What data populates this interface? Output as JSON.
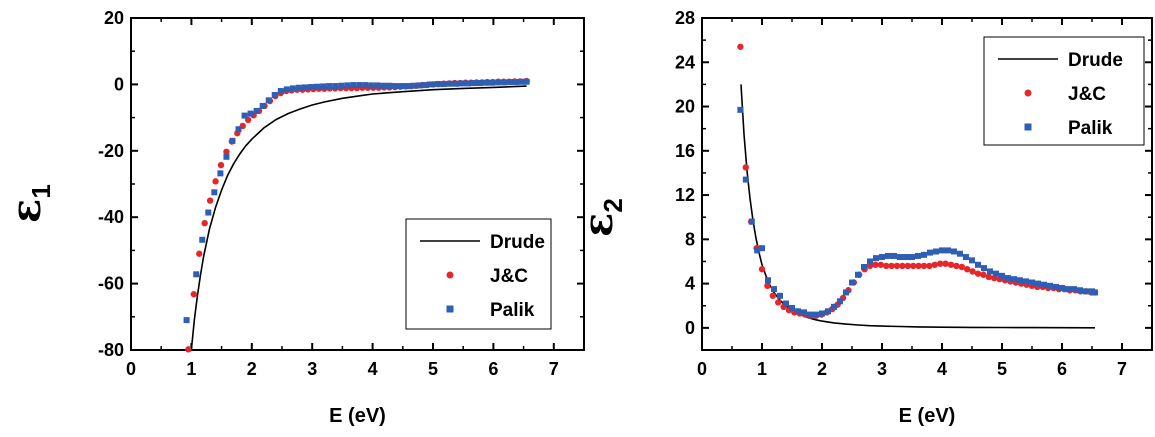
{
  "chart_data": [
    {
      "type": "scatter",
      "ylabel_symbol": "ε",
      "ylabel_subscript": "1",
      "xlabel": "E (eV)",
      "xlim": [
        0,
        7.5
      ],
      "ylim": [
        -80,
        20
      ],
      "xticks": [
        0,
        1,
        2,
        3,
        4,
        5,
        6,
        7
      ],
      "yticks": [
        -80,
        -60,
        -40,
        -20,
        0,
        20
      ],
      "legend_position": "bottom-right",
      "series": [
        {
          "name": "Drude",
          "kind": "line",
          "color": "#000000",
          "x": [
            1.0,
            1.05,
            1.1,
            1.15,
            1.2,
            1.3,
            1.4,
            1.5,
            1.6,
            1.7,
            1.8,
            1.9,
            2.0,
            2.2,
            2.4,
            2.6,
            2.8,
            3.0,
            3.2,
            3.5,
            3.8,
            4.0,
            4.5,
            5.0,
            5.5,
            6.0,
            6.55
          ],
          "y": [
            -79.8,
            -70.8,
            -63.7,
            -57.4,
            -52.0,
            -43.5,
            -37.0,
            -31.8,
            -27.4,
            -23.9,
            -21.0,
            -18.5,
            -16.5,
            -13.1,
            -10.6,
            -8.8,
            -7.4,
            -6.2,
            -5.3,
            -4.2,
            -3.4,
            -2.9,
            -2.2,
            -1.6,
            -1.2,
            -0.9,
            -0.5
          ]
        },
        {
          "name": "J&C",
          "kind": "circle",
          "color": "#e8262a",
          "x": [
            0.95,
            1.04,
            1.13,
            1.22,
            1.31,
            1.4,
            1.49,
            1.58,
            1.67,
            1.76,
            1.85,
            1.94,
            2.03,
            2.12,
            2.21,
            2.3,
            2.39,
            2.48,
            2.57,
            2.66,
            2.75,
            2.84,
            2.93,
            3.02,
            3.11,
            3.2,
            3.29,
            3.38,
            3.47,
            3.56,
            3.65,
            3.74,
            3.83,
            3.92,
            4.01,
            4.1,
            4.19,
            4.28,
            4.37,
            4.46,
            4.55,
            4.64,
            4.73,
            4.82,
            4.91,
            5.0,
            5.09,
            5.18,
            5.27,
            5.36,
            5.45,
            5.54,
            5.63,
            5.72,
            5.81,
            5.9,
            5.99,
            6.08,
            6.17,
            6.26,
            6.35,
            6.44,
            6.55
          ],
          "y": [
            -79.8,
            -63.2,
            -51.0,
            -41.8,
            -35.0,
            -29.2,
            -24.3,
            -20.3,
            -17.2,
            -14.7,
            -12.5,
            -10.7,
            -9.3,
            -8.0,
            -6.5,
            -5.0,
            -3.5,
            -2.6,
            -2.0,
            -1.8,
            -1.6,
            -1.6,
            -1.5,
            -1.4,
            -1.3,
            -1.3,
            -1.2,
            -1.2,
            -1.1,
            -1.1,
            -1.1,
            -1.1,
            -1.0,
            -1.0,
            -1.0,
            -1.0,
            -0.9,
            -0.9,
            -0.8,
            -0.7,
            -0.6,
            -0.5,
            -0.4,
            -0.2,
            -0.1,
            0.0,
            0.1,
            0.2,
            0.3,
            0.4,
            0.4,
            0.5,
            0.5,
            0.6,
            0.6,
            0.7,
            0.7,
            0.8,
            0.8,
            0.8,
            0.9,
            0.9,
            1.0
          ]
        },
        {
          "name": "Palik",
          "kind": "square",
          "color": "#2e5fb5",
          "x": [
            0.92,
            1.08,
            1.18,
            1.28,
            1.38,
            1.48,
            1.58,
            1.68,
            1.78,
            1.88,
            1.98,
            2.08,
            2.18,
            2.28,
            2.38,
            2.48,
            2.58,
            2.68,
            2.78,
            2.88,
            2.98,
            3.08,
            3.18,
            3.28,
            3.38,
            3.48,
            3.58,
            3.68,
            3.78,
            3.88,
            3.98,
            4.08,
            4.18,
            4.28,
            4.38,
            4.48,
            4.58,
            4.68,
            4.78,
            4.88,
            4.98,
            5.08,
            5.18,
            5.28,
            5.38,
            5.48,
            5.58,
            5.68,
            5.78,
            5.88,
            5.98,
            6.08,
            6.18,
            6.28,
            6.38,
            6.48,
            6.55
          ],
          "y": [
            -71.0,
            -57.2,
            -46.8,
            -38.6,
            -32.5,
            -26.8,
            -21.8,
            -17.0,
            -13.5,
            -9.4,
            -8.8,
            -8.0,
            -6.5,
            -4.8,
            -3.2,
            -2.0,
            -1.5,
            -1.2,
            -1.0,
            -0.9,
            -0.8,
            -0.7,
            -0.6,
            -0.5,
            -0.5,
            -0.4,
            -0.3,
            -0.2,
            -0.2,
            -0.2,
            -0.3,
            -0.3,
            -0.4,
            -0.4,
            -0.5,
            -0.5,
            -0.5,
            -0.4,
            -0.3,
            -0.2,
            0.0,
            0.1,
            0.1,
            0.2,
            0.2,
            0.3,
            0.3,
            0.4,
            0.4,
            0.5,
            0.5,
            0.6,
            0.6,
            0.7,
            0.7,
            0.8,
            0.8
          ]
        }
      ]
    },
    {
      "type": "scatter",
      "ylabel_symbol": "ε",
      "ylabel_subscript": "2",
      "xlabel": "E (eV)",
      "xlim": [
        0,
        7.5
      ],
      "ylim": [
        -2,
        28
      ],
      "xticks": [
        0,
        1,
        2,
        3,
        4,
        5,
        6,
        7
      ],
      "yticks": [
        0,
        4,
        8,
        12,
        16,
        20,
        24,
        28
      ],
      "legend_position": "top-right",
      "series": [
        {
          "name": "Drude",
          "kind": "line",
          "color": "#000000",
          "x": [
            0.65,
            0.7,
            0.75,
            0.8,
            0.85,
            0.9,
            0.95,
            1.0,
            1.1,
            1.2,
            1.3,
            1.4,
            1.5,
            1.6,
            1.7,
            1.8,
            1.9,
            2.0,
            2.2,
            2.4,
            2.6,
            2.8,
            3.0,
            3.3,
            3.6,
            4.0,
            4.5,
            5.0,
            5.5,
            6.0,
            6.55
          ],
          "y": [
            22.0,
            17.5,
            14.2,
            11.7,
            9.7,
            8.1,
            6.8,
            5.7,
            4.2,
            3.2,
            2.5,
            2.0,
            1.6,
            1.3,
            1.06,
            0.87,
            0.73,
            0.61,
            0.45,
            0.34,
            0.26,
            0.2,
            0.16,
            0.12,
            0.09,
            0.06,
            0.04,
            0.03,
            0.02,
            0.015,
            0.01
          ]
        },
        {
          "name": "J&C",
          "kind": "circle",
          "color": "#e8262a",
          "x": [
            0.64,
            0.73,
            0.82,
            0.91,
            1.0,
            1.09,
            1.18,
            1.27,
            1.36,
            1.45,
            1.54,
            1.63,
            1.72,
            1.81,
            1.9,
            1.99,
            2.08,
            2.17,
            2.26,
            2.35,
            2.44,
            2.53,
            2.62,
            2.71,
            2.8,
            2.89,
            2.98,
            3.07,
            3.16,
            3.25,
            3.34,
            3.43,
            3.52,
            3.61,
            3.7,
            3.79,
            3.88,
            3.97,
            4.06,
            4.15,
            4.24,
            4.33,
            4.42,
            4.51,
            4.6,
            4.69,
            4.78,
            4.87,
            4.96,
            5.05,
            5.14,
            5.23,
            5.32,
            5.41,
            5.5,
            5.59,
            5.68,
            5.77,
            5.86,
            5.95,
            6.04,
            6.13,
            6.22,
            6.31,
            6.4,
            6.49,
            6.55
          ],
          "y": [
            25.4,
            14.5,
            9.6,
            7.2,
            5.3,
            3.8,
            2.9,
            2.3,
            1.9,
            1.6,
            1.4,
            1.3,
            1.2,
            1.1,
            1.1,
            1.2,
            1.4,
            1.7,
            2.1,
            2.7,
            3.4,
            4.1,
            4.8,
            5.3,
            5.6,
            5.7,
            5.7,
            5.6,
            5.6,
            5.6,
            5.6,
            5.6,
            5.6,
            5.6,
            5.6,
            5.6,
            5.7,
            5.8,
            5.8,
            5.7,
            5.6,
            5.5,
            5.3,
            5.1,
            4.9,
            4.8,
            4.6,
            4.5,
            4.4,
            4.3,
            4.2,
            4.1,
            4.0,
            3.9,
            3.8,
            3.7,
            3.7,
            3.6,
            3.6,
            3.5,
            3.5,
            3.4,
            3.4,
            3.3,
            3.3,
            3.2,
            3.2
          ]
        },
        {
          "name": "Palik",
          "kind": "square",
          "color": "#2e5fb5",
          "x": [
            0.64,
            0.73,
            0.83,
            0.92,
            1.0,
            1.1,
            1.2,
            1.3,
            1.4,
            1.5,
            1.6,
            1.7,
            1.8,
            1.9,
            2.0,
            2.1,
            2.2,
            2.3,
            2.4,
            2.5,
            2.6,
            2.7,
            2.8,
            2.9,
            3.0,
            3.1,
            3.2,
            3.3,
            3.4,
            3.5,
            3.6,
            3.7,
            3.8,
            3.9,
            4.0,
            4.1,
            4.2,
            4.3,
            4.4,
            4.5,
            4.6,
            4.7,
            4.8,
            4.9,
            5.0,
            5.1,
            5.2,
            5.3,
            5.4,
            5.5,
            5.6,
            5.7,
            5.8,
            5.9,
            6.0,
            6.1,
            6.2,
            6.3,
            6.4,
            6.5,
            6.55
          ],
          "y": [
            19.7,
            13.4,
            9.6,
            7.0,
            7.2,
            4.3,
            3.5,
            2.9,
            2.2,
            1.8,
            1.5,
            1.4,
            1.2,
            1.2,
            1.3,
            1.5,
            1.9,
            2.4,
            3.2,
            4.1,
            4.8,
            5.5,
            6.0,
            6.3,
            6.4,
            6.5,
            6.5,
            6.4,
            6.4,
            6.4,
            6.5,
            6.6,
            6.8,
            6.9,
            7.0,
            7.0,
            6.9,
            6.7,
            6.4,
            6.1,
            5.7,
            5.4,
            5.1,
            4.9,
            4.7,
            4.5,
            4.4,
            4.3,
            4.2,
            4.1,
            4.0,
            3.9,
            3.8,
            3.7,
            3.6,
            3.5,
            3.5,
            3.4,
            3.3,
            3.3,
            3.2
          ]
        }
      ]
    }
  ]
}
